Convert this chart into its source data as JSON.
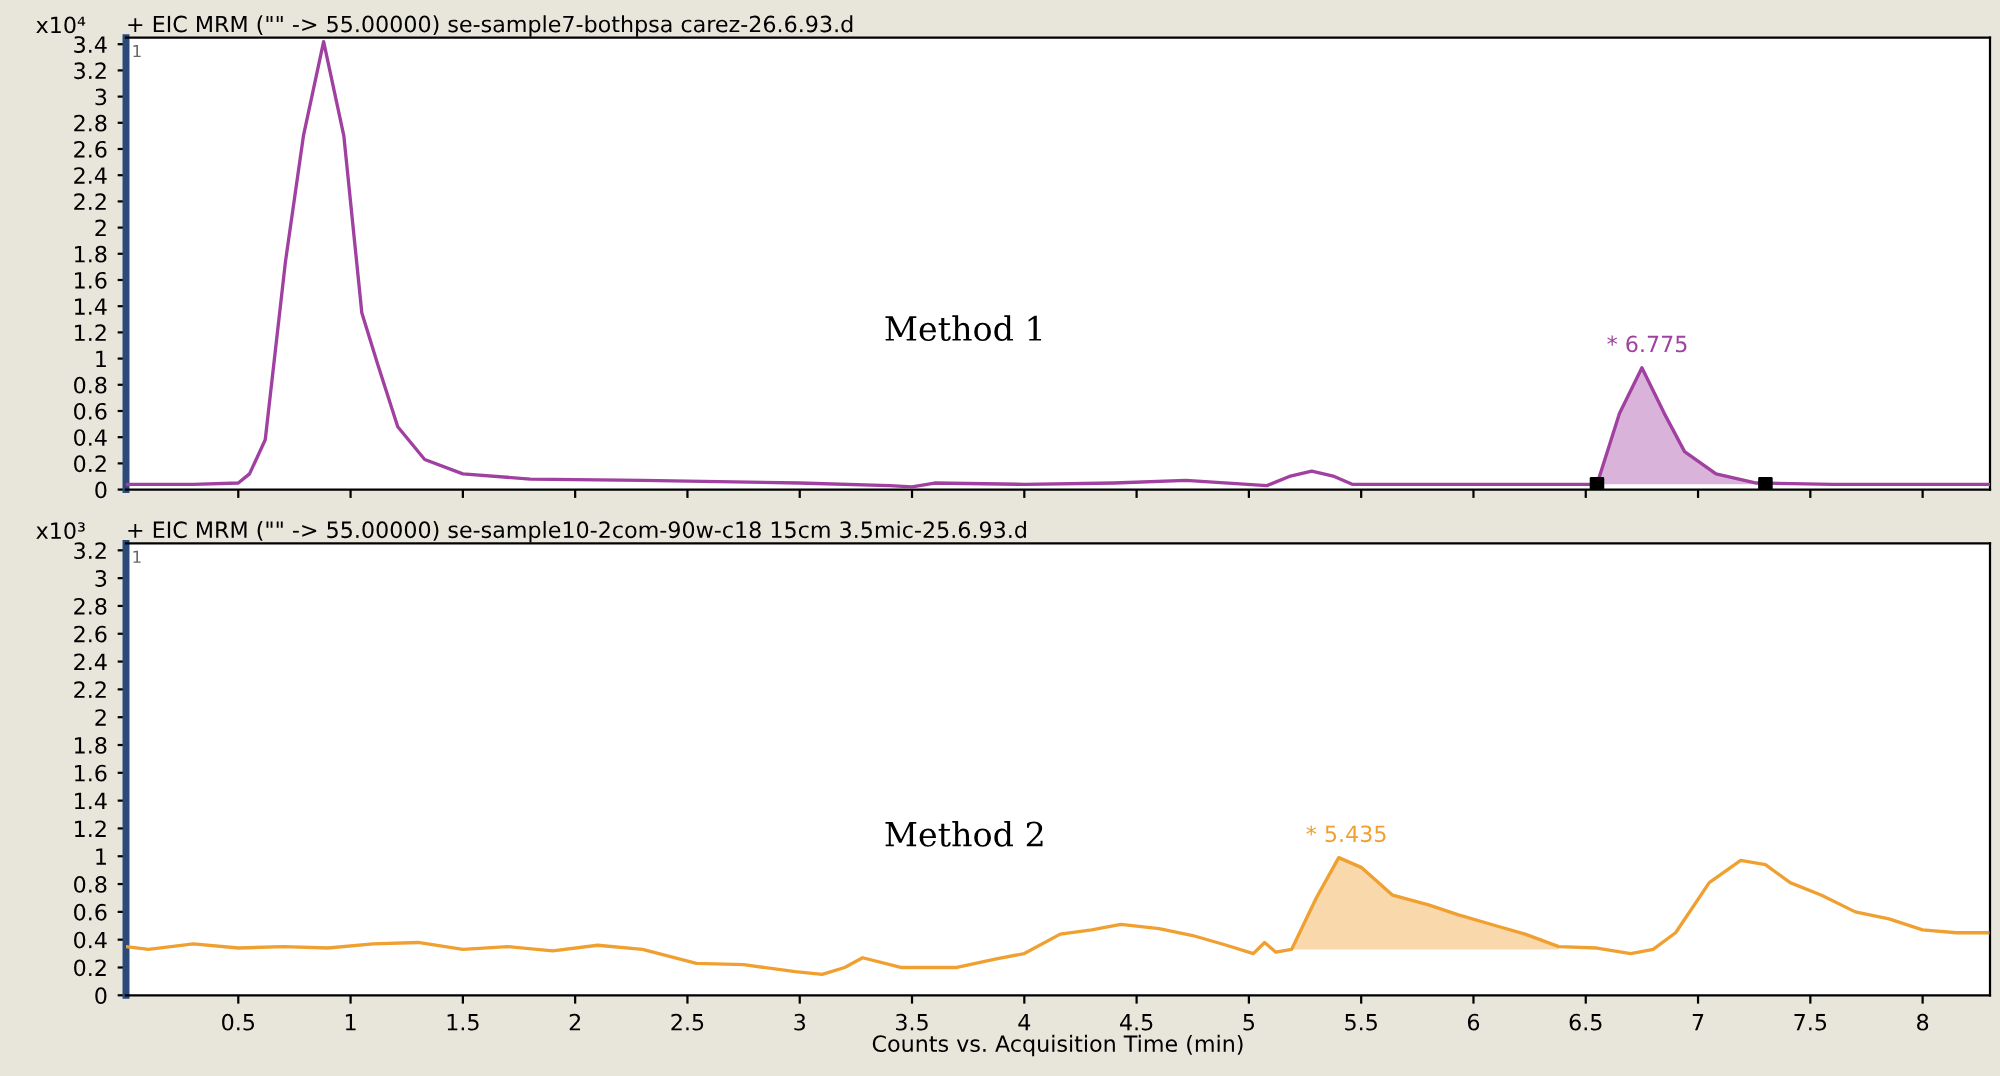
{
  "chart_data": [
    {
      "type": "line",
      "title": "+ EIC MRM (\"\" -> 55.00000) se-sample7-bothpsa carez-26.6.93.d",
      "ylabel": "x10⁴",
      "annotations": [
        "1",
        "Method 1",
        {
          "text": "* 6.775",
          "x": 6.775,
          "y": 0.93
        }
      ],
      "series": [
        {
          "color": "#a040a0",
          "x": [
            0,
            0.3,
            0.5,
            0.55,
            0.62,
            0.71,
            0.79,
            0.88,
            0.97,
            1.05,
            1.12,
            1.21,
            1.33,
            1.5,
            1.8,
            2.3,
            3.0,
            3.4,
            3.5,
            3.6,
            4.0,
            4.4,
            4.72,
            5.08,
            5.18,
            5.28,
            5.38,
            5.46,
            6.0,
            6.55,
            6.65,
            6.75,
            6.85,
            6.94,
            7.08,
            7.26,
            7.6,
            8.3
          ],
          "values": [
            0.04,
            0.04,
            0.05,
            0.12,
            0.38,
            1.74,
            2.7,
            3.42,
            2.7,
            1.35,
            0.96,
            0.48,
            0.23,
            0.12,
            0.08,
            0.07,
            0.05,
            0.03,
            0.02,
            0.05,
            0.04,
            0.05,
            0.07,
            0.03,
            0.1,
            0.14,
            0.1,
            0.04,
            0.04,
            0.04,
            0.58,
            0.93,
            0.58,
            0.29,
            0.12,
            0.05,
            0.04,
            0.04
          ],
          "lower": [
            null,
            null,
            null,
            null,
            null,
            null,
            null,
            null,
            null,
            null,
            null,
            null,
            null,
            null,
            null,
            null,
            null,
            null,
            null,
            null,
            null,
            null,
            null,
            null,
            null,
            null,
            null,
            null,
            null,
            0.04,
            0.04,
            0.04,
            0.04,
            0.04,
            0.04,
            0.04,
            null,
            null
          ],
          "upper": [
            null,
            null,
            null,
            null,
            null,
            null,
            null,
            null,
            null,
            null,
            null,
            null,
            null,
            null,
            null,
            null,
            null,
            null,
            null,
            null,
            null,
            null,
            null,
            null,
            null,
            null,
            null,
            null,
            null,
            0.04,
            0.58,
            0.93,
            0.58,
            0.29,
            0.12,
            0.05,
            null,
            null
          ]
        },
        {
          "type": "scatter",
          "color": "#000000",
          "marker": "square",
          "x": [
            6.55,
            7.3
          ],
          "values": [
            0.04,
            0.04
          ]
        }
      ],
      "xlim": [
        0,
        8.3
      ],
      "ylim": [
        0,
        3.45
      ],
      "xticks": [
        0.5,
        1,
        1.5,
        2,
        2.5,
        3,
        3.5,
        4,
        4.5,
        5,
        5.5,
        6,
        6.5,
        7,
        7.5,
        8
      ],
      "yticks": [
        0,
        0.2,
        0.4,
        0.6,
        0.8,
        1,
        1.2,
        1.4,
        1.6,
        1.8,
        2,
        2.2,
        2.4,
        2.6,
        2.8,
        3,
        3.2,
        3.4
      ],
      "tick_labels": "y",
      "grid": false,
      "legend": false
    },
    {
      "type": "line",
      "title": "+ EIC MRM (\"\" -> 55.00000) se-sample10-2com-90w-c18 15cm 3.5mic-25.6.93.d",
      "ylabel": "x10³",
      "xlabel": "Counts vs. Acquisition Time (min)",
      "annotations": [
        "1",
        "Method 2",
        {
          "text": "* 5.435",
          "x": 5.435,
          "y": 0.99
        }
      ],
      "series": [
        {
          "color": "#f0a030",
          "x": [
            0,
            0.1,
            0.3,
            0.5,
            0.7,
            0.9,
            1.1,
            1.3,
            1.5,
            1.7,
            1.9,
            2.1,
            2.3,
            2.54,
            2.75,
            2.98,
            3.1,
            3.2,
            3.28,
            3.45,
            3.7,
            3.87,
            4.0,
            4.16,
            4.3,
            4.43,
            4.6,
            4.75,
            4.9,
            5.02,
            5.07,
            5.12,
            5.19,
            5.3,
            5.4,
            5.5,
            5.64,
            5.8,
            5.93,
            6.1,
            6.23,
            6.38,
            6.55,
            6.7,
            6.8,
            6.9,
            7.05,
            7.19,
            7.3,
            7.41,
            7.55,
            7.7,
            7.85,
            8.0,
            8.15,
            8.29
          ],
          "values": [
            0.35,
            0.33,
            0.37,
            0.34,
            0.35,
            0.34,
            0.37,
            0.38,
            0.33,
            0.35,
            0.32,
            0.36,
            0.33,
            0.23,
            0.22,
            0.17,
            0.15,
            0.2,
            0.27,
            0.2,
            0.2,
            0.26,
            0.3,
            0.44,
            0.47,
            0.51,
            0.48,
            0.43,
            0.36,
            0.3,
            0.38,
            0.31,
            0.33,
            0.7,
            0.99,
            0.92,
            0.72,
            0.65,
            0.58,
            0.5,
            0.44,
            0.35,
            0.34,
            0.3,
            0.33,
            0.45,
            0.81,
            0.97,
            0.94,
            0.81,
            0.72,
            0.6,
            0.55,
            0.47,
            0.45,
            0.45
          ],
          "lower": [
            null,
            null,
            null,
            null,
            null,
            null,
            null,
            null,
            null,
            null,
            null,
            null,
            null,
            null,
            null,
            null,
            null,
            null,
            null,
            null,
            null,
            null,
            null,
            null,
            null,
            null,
            null,
            null,
            null,
            null,
            null,
            null,
            0.33,
            0.33,
            0.33,
            0.33,
            0.33,
            0.33,
            0.33,
            0.33,
            0.33,
            0.33,
            null,
            null,
            null,
            null,
            null,
            null,
            null,
            null,
            null,
            null,
            null,
            null,
            null,
            null
          ],
          "upper": [
            null,
            null,
            null,
            null,
            null,
            null,
            null,
            null,
            null,
            null,
            null,
            null,
            null,
            null,
            null,
            null,
            null,
            null,
            null,
            null,
            null,
            null,
            null,
            null,
            null,
            null,
            null,
            null,
            null,
            null,
            null,
            null,
            0.33,
            0.7,
            0.99,
            0.92,
            0.72,
            0.65,
            0.58,
            0.5,
            0.44,
            0.35,
            null,
            null,
            null,
            null,
            null,
            null,
            null,
            null,
            null,
            null,
            null,
            null,
            null,
            null
          ]
        }
      ],
      "xlim": [
        0,
        8.3
      ],
      "ylim": [
        0,
        3.25
      ],
      "xticks": [
        0.5,
        1,
        1.5,
        2,
        2.5,
        3,
        3.5,
        4,
        4.5,
        5,
        5.5,
        6,
        6.5,
        7,
        7.5,
        8
      ],
      "yticks": [
        0,
        0.2,
        0.4,
        0.6,
        0.8,
        1,
        1.2,
        1.4,
        1.6,
        1.8,
        2,
        2.2,
        2.4,
        2.6,
        2.8,
        3,
        3.2
      ],
      "grid": false,
      "legend": false
    }
  ]
}
